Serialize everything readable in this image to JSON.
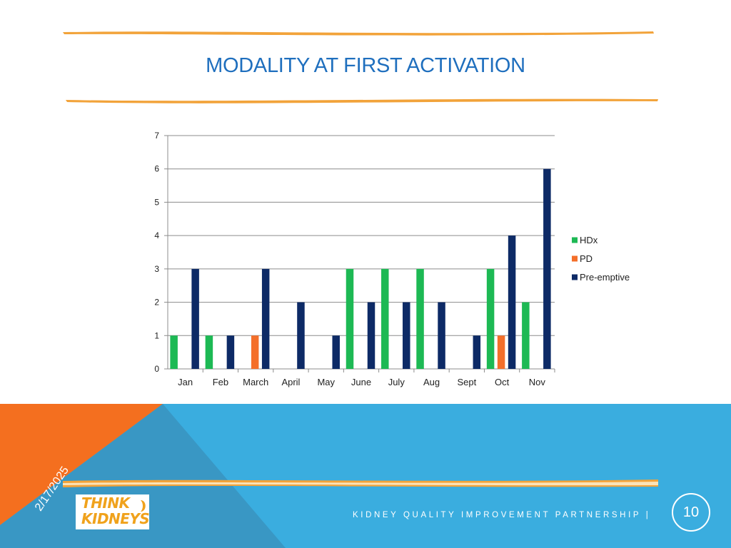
{
  "slide": {
    "title": "MODALITY AT FIRST ACTIVATION",
    "date": "2/17/2025",
    "footer_text": "KIDNEY QUALITY IMPROVEMENT PARTNERSHIP |",
    "page_number": "10",
    "logo": {
      "line1": "THINK",
      "line2": "KIDNEYS"
    }
  },
  "colors": {
    "title": "#1f6fbe",
    "accent_stroke": "#f2a33a",
    "footer_blue": "#3aaddf",
    "footer_dark_blue": "#3a93c0",
    "footer_orange": "#f46f1f",
    "hdx": "#1db954",
    "pd": "#f46f2a",
    "preemptive": "#0d2a66"
  },
  "chart_data": {
    "type": "bar",
    "title": "",
    "xlabel": "",
    "ylabel": "",
    "ylim": [
      0,
      7
    ],
    "yticks": [
      0,
      1,
      2,
      3,
      4,
      5,
      6,
      7
    ],
    "grid": true,
    "legend_position": "right",
    "categories": [
      "Jan",
      "Feb",
      "March",
      "April",
      "May",
      "June",
      "July",
      "Aug",
      "Sept",
      "Oct",
      "Nov"
    ],
    "series": [
      {
        "name": "HDx",
        "color": "#1db954",
        "values": [
          1,
          1,
          0,
          0,
          0,
          3,
          3,
          3,
          0,
          3,
          2
        ]
      },
      {
        "name": "PD",
        "color": "#f46f2a",
        "values": [
          0,
          0,
          1,
          0,
          0,
          0,
          0,
          0,
          0,
          1,
          0
        ]
      },
      {
        "name": "Pre-emptive",
        "color": "#0d2a66",
        "values": [
          3,
          1,
          3,
          2,
          1,
          2,
          2,
          2,
          1,
          4,
          6
        ]
      }
    ]
  }
}
